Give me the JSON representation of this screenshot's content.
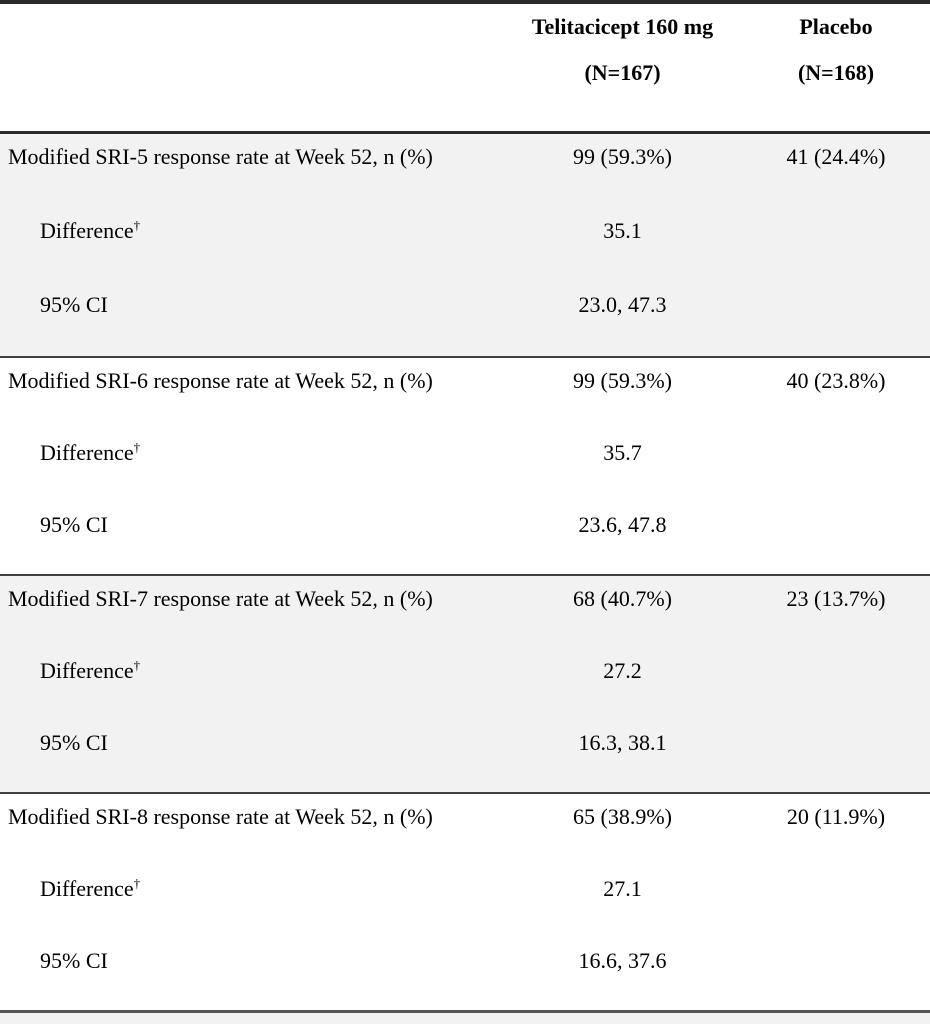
{
  "table": {
    "header": {
      "col1_label": "",
      "col2": {
        "line1": "Telitacicept 160 mg",
        "line2": "(N=167)"
      },
      "col3": {
        "line1": "Placebo",
        "line2": "(N=168)"
      }
    },
    "sections": [
      {
        "name": "Modified SRI-5",
        "shaded": true,
        "rows": [
          {
            "label": "Modified SRI-5 response rate at Week 52, n (%)",
            "sup": "",
            "col2": "99 (59.3%)",
            "col3": "41 (24.4%)"
          },
          {
            "label": "Difference",
            "sup": "†",
            "col2": "35.1",
            "col3": ""
          },
          {
            "label": "95% CI",
            "sup": "",
            "col2": "23.0, 47.3",
            "col3": ""
          }
        ]
      },
      {
        "name": "Modified SRI-6",
        "shaded": false,
        "rows": [
          {
            "label": "Modified SRI-6 response rate at Week 52, n (%)",
            "sup": "",
            "col2": "99 (59.3%)",
            "col3": "40 (23.8%)"
          },
          {
            "label": "Difference",
            "sup": "†",
            "col2": "35.7",
            "col3": ""
          },
          {
            "label": "95% CI",
            "sup": "",
            "col2": "23.6, 47.8",
            "col3": ""
          }
        ]
      },
      {
        "name": "Modified SRI-7",
        "shaded": true,
        "rows": [
          {
            "label": "Modified SRI-7 response rate at Week 52, n (%)",
            "sup": "",
            "col2": "68 (40.7%)",
            "col3": "23 (13.7%)"
          },
          {
            "label": "Difference",
            "sup": "†",
            "col2": "27.2",
            "col3": ""
          },
          {
            "label": "95% CI",
            "sup": "",
            "col2": "16.3, 38.1",
            "col3": ""
          }
        ]
      },
      {
        "name": "Modified SRI-8",
        "shaded": false,
        "rows": [
          {
            "label": "Modified SRI-8 response rate at Week 52, n (%)",
            "sup": "",
            "col2": "65 (38.9%)",
            "col3": "20 (11.9%)"
          },
          {
            "label": "Difference",
            "sup": "†",
            "col2": "27.1",
            "col3": ""
          },
          {
            "label": "95% CI",
            "sup": "",
            "col2": "16.6, 37.6",
            "col3": ""
          }
        ]
      }
    ],
    "style": {
      "shading_color": "#f2f2f2",
      "rule_color": "#3f3f3f",
      "top_rule_color": "#2a2a2a",
      "text_color": "#000000"
    }
  }
}
